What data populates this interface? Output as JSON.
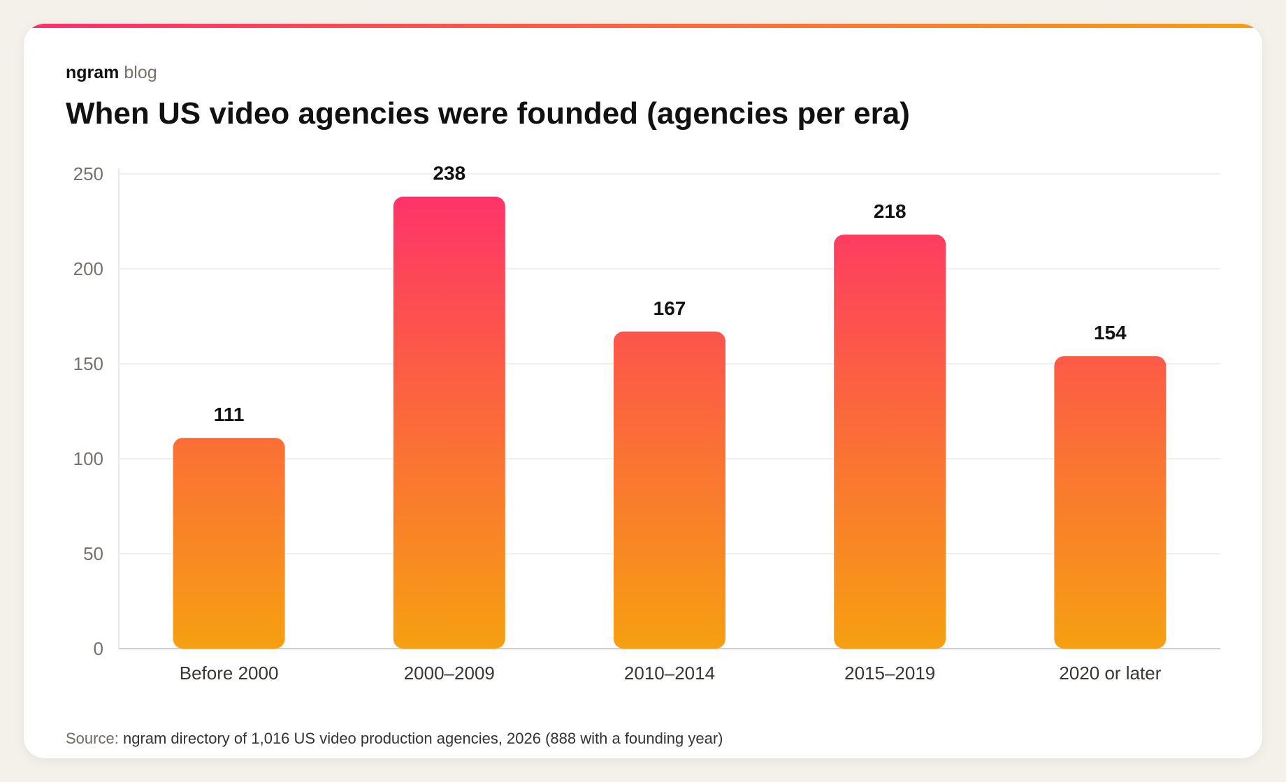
{
  "brand": {
    "name": "ngram",
    "sub": "blog"
  },
  "colors": {
    "accent_start": "#ff2e6e",
    "accent_mid": "#fb6a3a",
    "accent_end": "#f6a011"
  },
  "chart_data": {
    "type": "bar",
    "title": "When US video agencies were founded (agencies per era)",
    "categories": [
      "Before 2000",
      "2000–2009",
      "2010–2014",
      "2015–2019",
      "2020 or later"
    ],
    "values": [
      111,
      238,
      167,
      218,
      154
    ],
    "y_ticks": [
      0,
      50,
      100,
      150,
      200,
      250
    ],
    "ylim": [
      0,
      250
    ],
    "xlabel": "",
    "ylabel": "",
    "grid": true,
    "legend": "none",
    "data_labels": true
  },
  "source": {
    "label": "Source:",
    "text": "ngram directory of 1,016 US video production agencies, 2026 (888 with a founding year)"
  }
}
